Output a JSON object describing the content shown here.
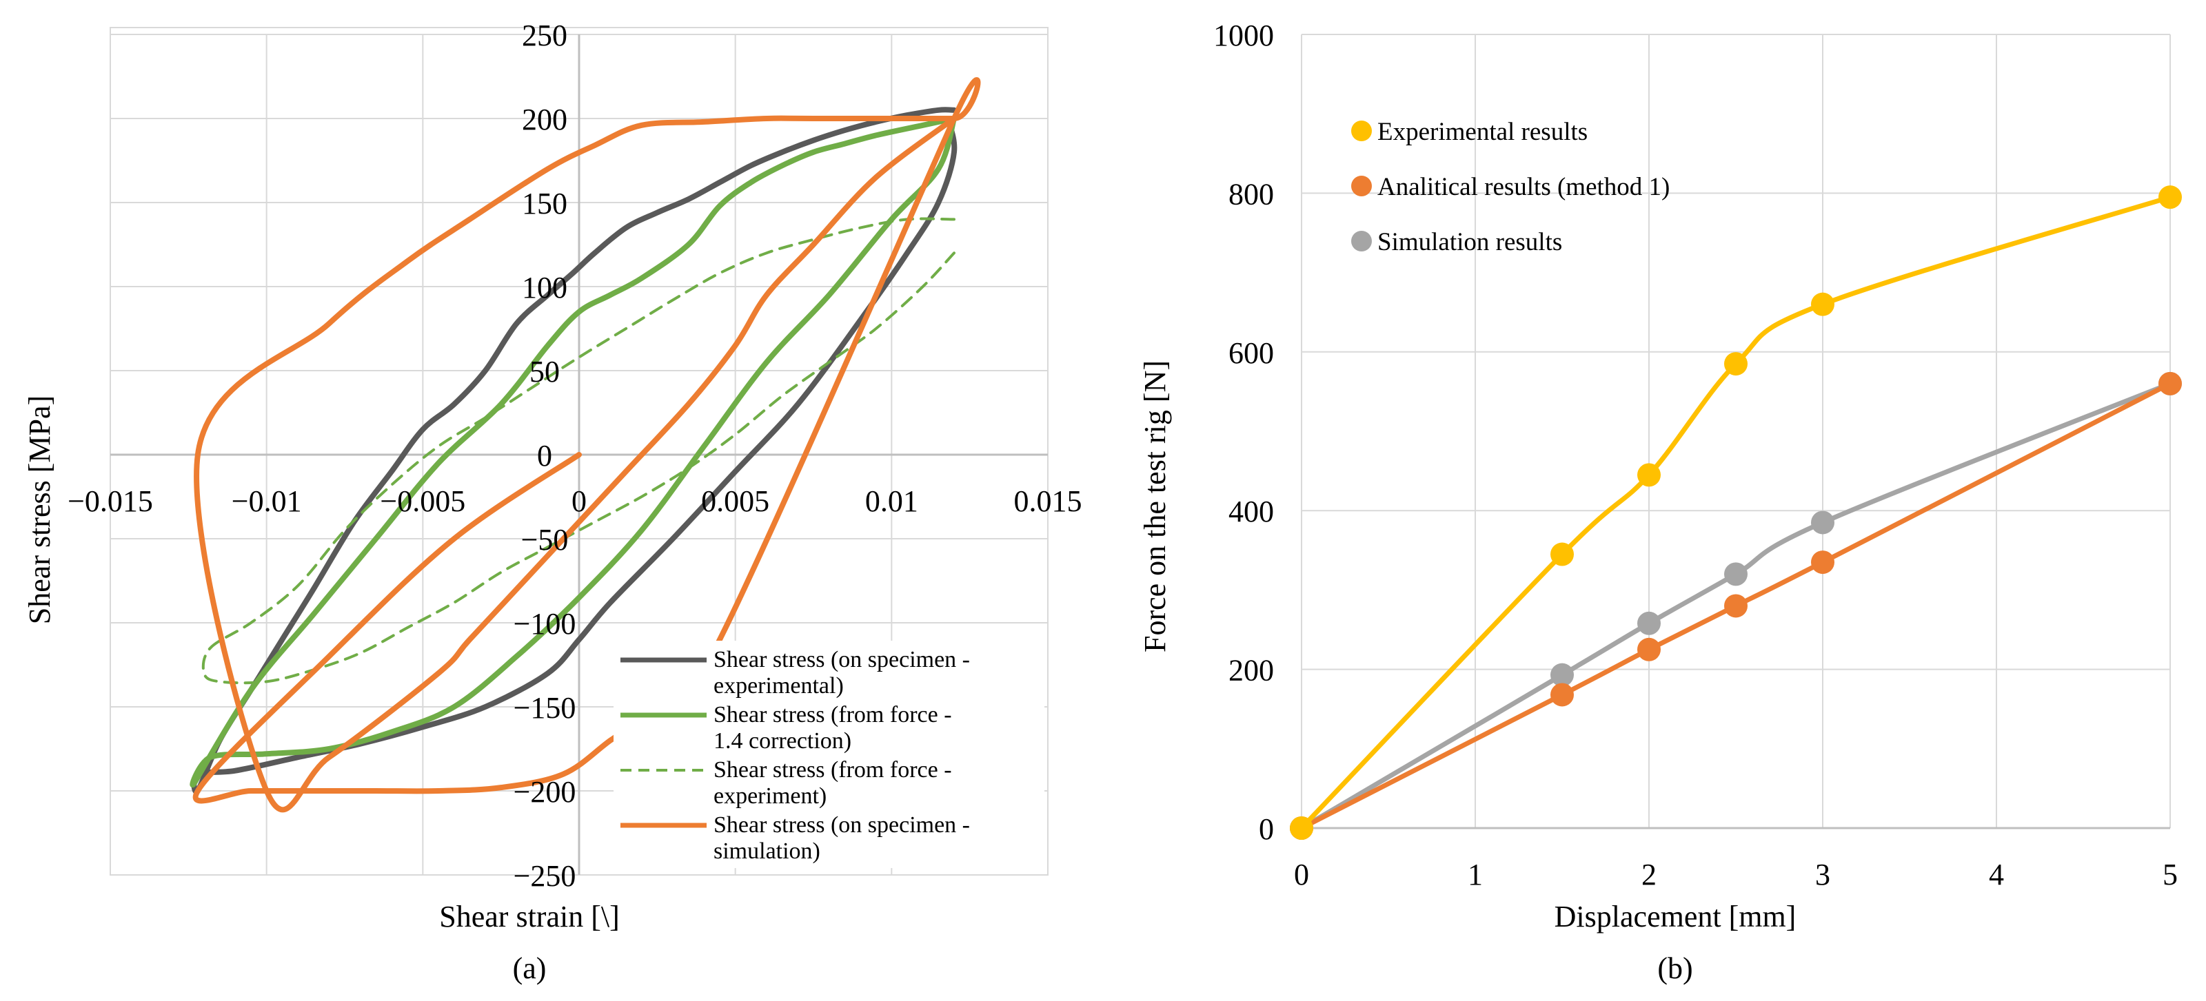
{
  "figure": {
    "panel_a_caption": "(a)",
    "panel_b_caption": "(b)"
  },
  "chart_data": [
    {
      "id": "a",
      "type": "line",
      "xlabel": "Shear strain [\\]",
      "ylabel": "Shear stress [MPa]",
      "xlim": [
        -0.015,
        0.015
      ],
      "ylim": [
        -250,
        250
      ],
      "xticks": [
        -0.015,
        -0.01,
        -0.005,
        0,
        0.005,
        0.01,
        0.015
      ],
      "xtick_labels": [
        "−0.015",
        "−0.01",
        "−0.005",
        "0",
        "0.005",
        "0.01",
        "0.015"
      ],
      "yticks": [
        250,
        200,
        150,
        100,
        50,
        0,
        -50,
        -100,
        -150,
        -200,
        -250
      ],
      "ytick_labels": [
        "250",
        "200",
        "150",
        "100",
        "50",
        "0",
        "−50",
        "−100",
        "−150",
        "−200",
        "−250"
      ],
      "grid": true,
      "legend_position": "bottom-right",
      "series": [
        {
          "name": "Shear stress (on specimen - experimental)",
          "legend_lines": [
            "Shear stress (on specimen -",
            "experimental)"
          ],
          "color": "#595959",
          "dash": "solid",
          "x": [
            0.012,
            0.0115,
            0.0105,
            0.0095,
            0.0085,
            0.0075,
            0.0065,
            0.0055,
            0.0045,
            0.0035,
            0.0025,
            0.0015,
            0.0005,
            -0.0002,
            -0.001,
            -0.002,
            -0.003,
            -0.004,
            -0.005,
            -0.006,
            -0.0072,
            -0.0085,
            -0.0095,
            -0.0105,
            -0.0115,
            -0.0122,
            -0.0122,
            -0.011,
            -0.009,
            -0.007,
            -0.005,
            -0.003,
            -0.001,
            0.0,
            0.001,
            0.003,
            0.005,
            0.007,
            0.009,
            0.0105,
            0.0115,
            0.012,
            0.0118
          ],
          "y": [
            205,
            205,
            202,
            198,
            193,
            187,
            180,
            172,
            162,
            152,
            144,
            135,
            120,
            108,
            95,
            78,
            50,
            30,
            15,
            -10,
            -40,
            -80,
            -110,
            -140,
            -170,
            -200,
            -190,
            -188,
            -180,
            -172,
            -162,
            -150,
            -130,
            -110,
            -88,
            -50,
            -10,
            30,
            80,
            120,
            150,
            180,
            200
          ]
        },
        {
          "name": "Shear stress (from force - 1.4 correction)",
          "legend_lines": [
            "Shear stress (from force -",
            "1.4 correction)"
          ],
          "color": "#70ad47",
          "dash": "solid",
          "x": [
            0.012,
            0.011,
            0.0095,
            0.0085,
            0.0075,
            0.0065,
            0.0055,
            0.0045,
            0.0035,
            0.002,
            0.001,
            0.0,
            -0.001,
            -0.0025,
            -0.0045,
            -0.0065,
            -0.0085,
            -0.0105,
            -0.0123,
            -0.0118,
            -0.01,
            -0.008,
            -0.006,
            -0.004,
            -0.002,
            0.0,
            0.002,
            0.004,
            0.006,
            0.008,
            0.01,
            0.0115,
            0.012
          ],
          "y": [
            200,
            196,
            190,
            185,
            180,
            172,
            162,
            148,
            125,
            105,
            95,
            85,
            65,
            30,
            -5,
            -50,
            -95,
            -140,
            -195,
            -180,
            -178,
            -175,
            -165,
            -150,
            -120,
            -85,
            -45,
            5,
            55,
            95,
            140,
            170,
            200
          ]
        },
        {
          "name": "Shear stress (from force - experiment)",
          "legend_lines": [
            "Shear stress (from force -",
            "experiment)"
          ],
          "color": "#70ad47",
          "dash": "dashed",
          "x": [
            0.012,
            0.0105,
            0.009,
            0.0075,
            0.006,
            0.0045,
            0.003,
            0.0015,
            0.0,
            -0.0015,
            -0.003,
            -0.0045,
            -0.006,
            -0.0075,
            -0.009,
            -0.0105,
            -0.0118,
            -0.012,
            -0.0115,
            -0.01,
            -0.0085,
            -0.007,
            -0.0055,
            -0.004,
            -0.0025,
            -0.001,
            0.0005,
            0.002,
            0.0035,
            0.005,
            0.0065,
            0.008,
            0.0095,
            0.011,
            0.012
          ],
          "y": [
            140,
            140,
            135,
            128,
            120,
            108,
            92,
            75,
            58,
            40,
            22,
            5,
            -18,
            -45,
            -78,
            -100,
            -115,
            -130,
            -135,
            -135,
            -128,
            -118,
            -103,
            -88,
            -70,
            -55,
            -40,
            -25,
            -8,
            12,
            35,
            55,
            75,
            100,
            120
          ]
        },
        {
          "name": "Shear stress (on specimen - simulation)",
          "legend_lines": [
            "Shear stress (on specimen -",
            "simulation)"
          ],
          "color": "#ed7d31",
          "dash": "solid",
          "x": [
            0.0,
            -0.004,
            -0.008,
            -0.0122,
            -0.0105,
            -0.0085,
            -0.0065,
            -0.0045,
            -0.0025,
            -0.0005,
            0.001,
            0.0025,
            0.0045,
            0.012,
            0.012,
            0.0075,
            0.006,
            0.004,
            0.002,
            0.0005,
            -0.001,
            -0.0035,
            -0.0055,
            -0.008,
            -0.0122,
            -0.01,
            -0.008,
            -0.0045,
            -0.0035,
            -0.0015,
            0.0,
            0.0015,
            0.0035,
            0.005,
            0.006,
            0.0075,
            0.0095,
            0.012
          ],
          "y": [
            0,
            -50,
            -120,
            -200,
            -200,
            -200,
            -200,
            -200,
            -198,
            -190,
            -170,
            -150,
            -110,
            200,
            200,
            200,
            200,
            198,
            196,
            184,
            170,
            140,
            115,
            78,
            0,
            -200,
            -180,
            -130,
            -110,
            -70,
            -40,
            -10,
            30,
            65,
            95,
            125,
            165,
            200
          ]
        }
      ]
    },
    {
      "id": "b",
      "type": "line",
      "xlabel": "Displacement [mm]",
      "ylabel": "Force on the test rig  [N]",
      "xlim": [
        0,
        5
      ],
      "ylim": [
        0,
        1000
      ],
      "xticks": [
        0,
        1,
        2,
        3,
        4,
        5
      ],
      "xtick_labels": [
        "0",
        "1",
        "2",
        "3",
        "4",
        "5"
      ],
      "yticks": [
        0,
        200,
        400,
        600,
        800,
        1000
      ],
      "ytick_labels": [
        "0",
        "200",
        "400",
        "600",
        "800",
        "1000"
      ],
      "grid": true,
      "legend_position": "top-left",
      "series": [
        {
          "name": "Experimental results",
          "color": "#ffc000",
          "x": [
            0,
            1.5,
            2,
            2.5,
            3,
            5
          ],
          "y": [
            0,
            345,
            445,
            585,
            660,
            795
          ]
        },
        {
          "name": "Analitical results (method 1)",
          "color": "#ed7d31",
          "x": [
            0,
            1.5,
            2,
            2.5,
            3,
            5
          ],
          "y": [
            0,
            168,
            225,
            280,
            335,
            560
          ]
        },
        {
          "name": "Simulation results",
          "color": "#a5a5a5",
          "x": [
            0,
            1.5,
            2,
            2.5,
            3,
            5
          ],
          "y": [
            0,
            193,
            258,
            320,
            385,
            560
          ]
        }
      ]
    }
  ]
}
